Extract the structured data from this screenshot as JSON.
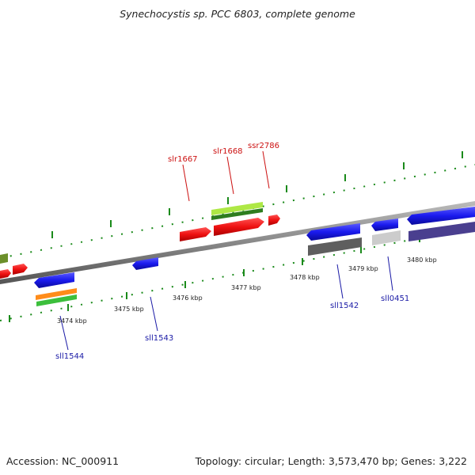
{
  "title": "Synechocystis sp. PCC 6803, complete genome",
  "footer": {
    "accession": "Accession: NC_000911",
    "summary": "Topology: circular; Length: 3,573,470 bp; Genes: 3,222"
  },
  "colors": {
    "forward_label": "#cc1111",
    "reverse_label": "#1a1aa6",
    "backbone": "#777777",
    "tick": "#1a8a1a"
  },
  "scale": {
    "unit": "kbp",
    "ticks": [
      {
        "kbp": 3474,
        "label": "3474 kbp"
      },
      {
        "kbp": 3475,
        "label": "3475 kbp"
      },
      {
        "kbp": 3476,
        "label": "3476 kbp"
      },
      {
        "kbp": 3477,
        "label": "3477 kbp"
      },
      {
        "kbp": 3478,
        "label": "3478 kbp"
      },
      {
        "kbp": 3479,
        "label": "3479 kbp"
      },
      {
        "kbp": 3480,
        "label": "3480 kbp"
      }
    ]
  },
  "genes": {
    "forward": [
      {
        "name": "slr1667"
      },
      {
        "name": "slr1668"
      },
      {
        "name": "ssr2786"
      }
    ],
    "reverse": [
      {
        "name": "sll1544"
      },
      {
        "name": "sll1543"
      },
      {
        "name": "sll1542"
      },
      {
        "name": "sll0451"
      }
    ]
  }
}
